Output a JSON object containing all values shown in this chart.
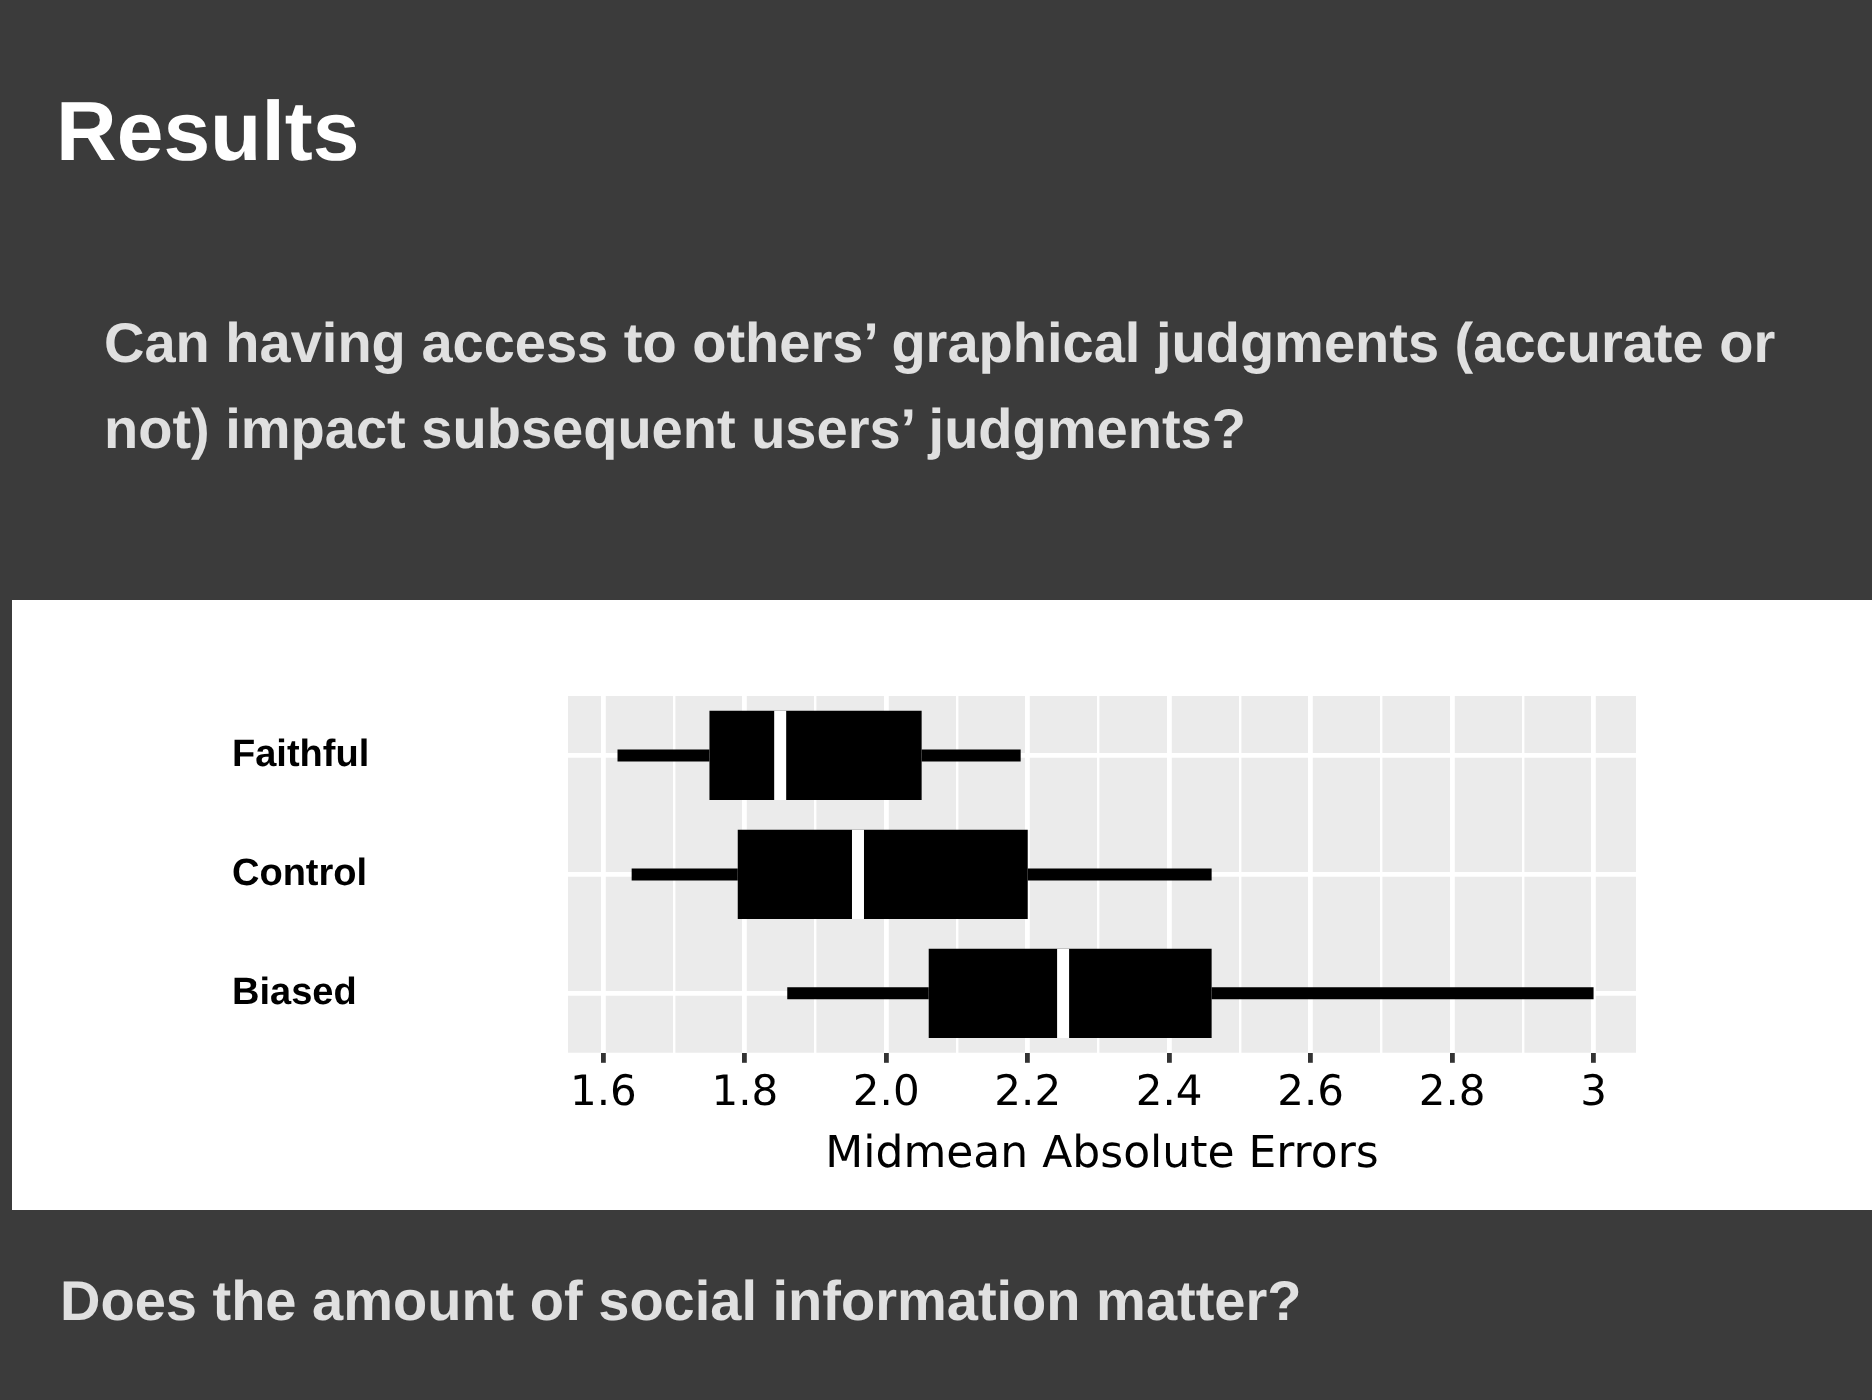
{
  "chart_data": {
    "type": "box",
    "title": "Results",
    "subtitle": "Can having access to others’ graphical judgments (accurate or not) impact subsequent users’ judgments?",
    "xlabel": "Midmean Absolute Errors",
    "annotations": [
      "Does the amount of social information matter?"
    ],
    "orientation": "horizontal",
    "categories": [
      "Faithful",
      "Control",
      "Biased"
    ],
    "series": [
      {
        "color": "#000000",
        "boxes": [
          {
            "low": 1.62,
            "q1": 1.75,
            "median": 1.85,
            "q3": 2.05,
            "high": 2.19
          },
          {
            "low": 1.64,
            "q1": 1.79,
            "median": 1.96,
            "q3": 2.2,
            "high": 2.46
          },
          {
            "low": 1.86,
            "q1": 2.06,
            "median": 2.25,
            "q3": 2.46,
            "high": 3.0
          }
        ]
      }
    ],
    "xlim": [
      1.55,
      3.06
    ],
    "xticks": [
      1.6,
      {
        "value": 1.7,
        "label": null
      },
      1.8,
      {
        "value": 1.9,
        "label": null
      },
      {
        "value": 2,
        "label": "2.0"
      },
      {
        "value": 2.1,
        "label": null
      },
      2.2,
      {
        "value": 2.3,
        "label": null
      },
      2.4,
      {
        "value": 2.5,
        "label": null
      },
      2.6,
      {
        "value": 2.7,
        "label": null
      },
      2.8,
      {
        "value": 2.9,
        "label": null
      },
      {
        "value": 3,
        "label": "3"
      }
    ],
    "grid": true
  }
}
